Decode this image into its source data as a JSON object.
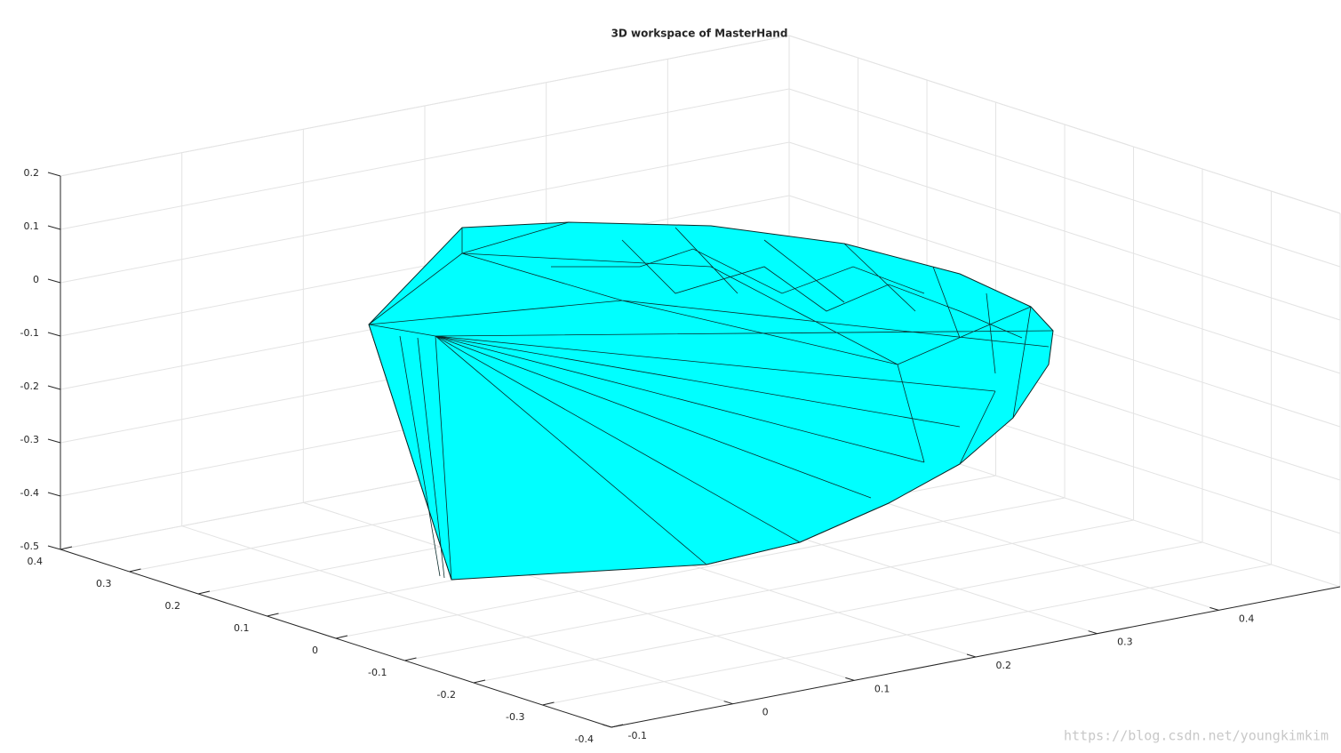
{
  "chart_data": {
    "type": "hull3d",
    "title": "3D workspace of MasterHand",
    "xlim": [
      -0.1,
      0.5
    ],
    "xticks": [
      -0.1,
      0,
      0.1,
      0.2,
      0.3,
      0.4
    ],
    "ylim": [
      -0.4,
      0.4
    ],
    "yticks": [
      0.4,
      0.3,
      0.2,
      0.1,
      0,
      -0.1,
      -0.2,
      -0.3,
      -0.4
    ],
    "zlim": [
      -0.5,
      0.2
    ],
    "zticks": [
      0.2,
      0.1,
      0,
      -0.1,
      -0.2,
      -0.3,
      -0.4,
      -0.5
    ],
    "grid": true,
    "color": "#00ffff"
  },
  "watermark": "https://blog.csdn.net/youngkimkim"
}
